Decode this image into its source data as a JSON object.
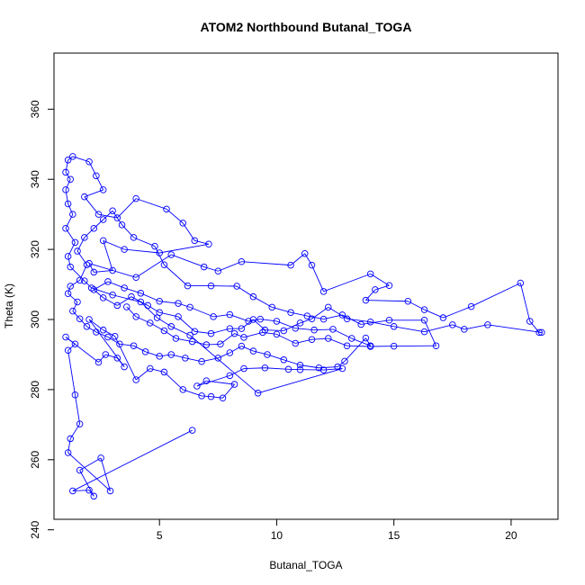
{
  "chart_data": {
    "type": "line",
    "title": "ATOM2 Northbound Butanal_TOGA",
    "xlabel": "Butanal_TOGA",
    "ylabel": "Theta (K)",
    "xlim": [
      0.5,
      22.0
    ],
    "ylim": [
      243,
      376
    ],
    "xticks": [
      5,
      10,
      15,
      20
    ],
    "yticks": [
      240,
      260,
      280,
      300,
      320,
      340,
      360
    ],
    "grid": false,
    "legend": "none",
    "marker": "open-circle",
    "line_style": "overplotted",
    "series": [
      {
        "color": "#0000ff",
        "points": [
          [
            6.4,
            268.4
          ],
          [
            1.3,
            251.1
          ],
          [
            2.0,
            251.3
          ],
          [
            2.2,
            249.6
          ],
          [
            1.6,
            257.0
          ],
          [
            2.5,
            260.5
          ],
          [
            2.9,
            251.1
          ],
          [
            1.1,
            262.0
          ],
          [
            1.2,
            266.0
          ],
          [
            1.6,
            270.2
          ],
          [
            1.4,
            278.5
          ],
          [
            1.1,
            291.2
          ],
          [
            1.4,
            293.0
          ],
          [
            1.0,
            295.0
          ],
          [
            2.4,
            287.8
          ],
          [
            2.7,
            290.0
          ],
          [
            3.2,
            289.0
          ],
          [
            3.5,
            286.5
          ],
          [
            2.0,
            300.0
          ],
          [
            2.6,
            297.0
          ],
          [
            3.1,
            295.2
          ],
          [
            4.0,
            282.8
          ],
          [
            4.6,
            286.0
          ],
          [
            5.2,
            285.0
          ],
          [
            6.0,
            280.0
          ],
          [
            6.8,
            278.2
          ],
          [
            7.2,
            278.0
          ],
          [
            7.7,
            277.6
          ],
          [
            8.2,
            281.5
          ],
          [
            7.0,
            282.5
          ],
          [
            6.6,
            281.0
          ],
          [
            8.0,
            284.0
          ],
          [
            8.6,
            286.0
          ],
          [
            9.5,
            286.2
          ],
          [
            10.5,
            285.8
          ],
          [
            11.0,
            285.7
          ],
          [
            12.0,
            285.6
          ],
          [
            12.8,
            286.0
          ],
          [
            9.2,
            279.0
          ],
          [
            6.3,
            295.5
          ],
          [
            5.5,
            298.0
          ],
          [
            4.9,
            300.5
          ],
          [
            4.2,
            305.0
          ],
          [
            3.0,
            307.0
          ],
          [
            2.1,
            309.0
          ],
          [
            1.8,
            311.0
          ],
          [
            1.2,
            315.0
          ],
          [
            1.1,
            318.0
          ],
          [
            1.4,
            322.0
          ],
          [
            1.0,
            326.0
          ],
          [
            1.3,
            330.0
          ],
          [
            1.1,
            333.0
          ],
          [
            1.0,
            337.0
          ],
          [
            1.2,
            340.0
          ],
          [
            1.0,
            342.0
          ],
          [
            1.1,
            345.5
          ],
          [
            1.3,
            346.5
          ],
          [
            2.0,
            345.0
          ],
          [
            2.3,
            341.0
          ],
          [
            2.6,
            337.0
          ],
          [
            1.8,
            335.0
          ],
          [
            2.4,
            330.0
          ],
          [
            3.2,
            329.0
          ],
          [
            4.0,
            334.5
          ],
          [
            5.3,
            331.5
          ],
          [
            6.0,
            327.5
          ],
          [
            6.5,
            322.5
          ],
          [
            7.1,
            321.5
          ],
          [
            5.0,
            319.0
          ],
          [
            3.5,
            320.0
          ],
          [
            2.6,
            322.5
          ],
          [
            3.0,
            314.0
          ],
          [
            2.2,
            313.5
          ],
          [
            2.0,
            316.0
          ],
          [
            4.0,
            312.0
          ],
          [
            5.5,
            318.5
          ],
          [
            6.9,
            315.0
          ],
          [
            7.5,
            313.8
          ],
          [
            8.5,
            316.5
          ],
          [
            10.6,
            315.5
          ],
          [
            11.2,
            318.8
          ],
          [
            11.5,
            315.5
          ],
          [
            12.0,
            308.0
          ],
          [
            14.0,
            313.0
          ],
          [
            14.8,
            309.7
          ],
          [
            14.2,
            308.5
          ],
          [
            13.8,
            305.5
          ],
          [
            15.6,
            305.2
          ],
          [
            16.3,
            302.8
          ],
          [
            17.1,
            300.5
          ],
          [
            18.3,
            303.7
          ],
          [
            20.4,
            310.4
          ],
          [
            20.8,
            299.5
          ],
          [
            21.2,
            296.3
          ],
          [
            21.3,
            296.3
          ],
          [
            19.0,
            298.5
          ],
          [
            18.0,
            297.2
          ],
          [
            17.5,
            298.5
          ],
          [
            16.3,
            296.5
          ],
          [
            15.0,
            298.0
          ],
          [
            14.0,
            299.3
          ],
          [
            13.0,
            300.2
          ],
          [
            12.2,
            303.5
          ],
          [
            11.5,
            300.2
          ],
          [
            11.0,
            299.0
          ],
          [
            10.3,
            296.8
          ],
          [
            9.5,
            297.0
          ],
          [
            9.0,
            300.0
          ],
          [
            8.5,
            297.4
          ],
          [
            8.0,
            297.4
          ],
          [
            7.2,
            296.0
          ],
          [
            6.5,
            296.6
          ],
          [
            5.8,
            300.8
          ],
          [
            5.0,
            302.0
          ],
          [
            4.5,
            304.0
          ],
          [
            3.8,
            306.5
          ],
          [
            3.2,
            304.0
          ],
          [
            2.6,
            306.2
          ],
          [
            2.2,
            308.5
          ],
          [
            2.8,
            310.8
          ],
          [
            3.5,
            309.0
          ],
          [
            4.2,
            307.5
          ],
          [
            5.0,
            305.2
          ],
          [
            5.8,
            304.6
          ],
          [
            6.3,
            303.5
          ],
          [
            7.3,
            300.8
          ],
          [
            8.0,
            301.4
          ],
          [
            8.8,
            299.5
          ],
          [
            9.3,
            300.1
          ],
          [
            10.0,
            299.5
          ],
          [
            10.8,
            297.5
          ],
          [
            11.6,
            297.0
          ],
          [
            12.4,
            297.2
          ],
          [
            13.2,
            294.6
          ],
          [
            14.0,
            292.5
          ],
          [
            13.8,
            294.7
          ],
          [
            12.9,
            288.1
          ],
          [
            12.6,
            286.5
          ],
          [
            11.8,
            286.2
          ],
          [
            11.0,
            287.0
          ],
          [
            10.3,
            288.5
          ],
          [
            9.6,
            290.0
          ],
          [
            9.0,
            291.0
          ],
          [
            8.5,
            292.4
          ],
          [
            8.0,
            290.5
          ],
          [
            7.5,
            289.0
          ],
          [
            6.8,
            288.0
          ],
          [
            6.1,
            289.0
          ],
          [
            5.5,
            290.0
          ],
          [
            5.0,
            289.5
          ],
          [
            4.4,
            290.8
          ],
          [
            3.9,
            292.5
          ],
          [
            3.3,
            293.0
          ],
          [
            2.8,
            295.0
          ],
          [
            2.3,
            296.4
          ],
          [
            1.9,
            298.0
          ],
          [
            1.6,
            300.2
          ],
          [
            1.3,
            302.4
          ],
          [
            1.5,
            305.0
          ],
          [
            1.1,
            307.4
          ],
          [
            1.2,
            309.5
          ],
          [
            1.6,
            311.2
          ],
          [
            1.9,
            315.6
          ],
          [
            1.5,
            319.5
          ],
          [
            1.8,
            323.4
          ],
          [
            2.2,
            326.0
          ],
          [
            2.6,
            328.5
          ],
          [
            3.0,
            331.0
          ],
          [
            3.4,
            327.0
          ],
          [
            3.9,
            323.4
          ],
          [
            4.8,
            320.9
          ],
          [
            5.2,
            315.6
          ],
          [
            6.2,
            309.6
          ],
          [
            7.2,
            309.6
          ],
          [
            8.3,
            309.5
          ],
          [
            9.0,
            306.5
          ],
          [
            9.8,
            303.5
          ],
          [
            10.6,
            302.0
          ],
          [
            11.3,
            301.0
          ],
          [
            12.0,
            300.1
          ],
          [
            12.8,
            301.3
          ],
          [
            13.6,
            298.6
          ],
          [
            14.8,
            299.8
          ],
          [
            16.3,
            299.8
          ],
          [
            16.8,
            292.5
          ],
          [
            15.0,
            292.4
          ],
          [
            14.0,
            292.3
          ],
          [
            13.0,
            292.5
          ],
          [
            12.2,
            294.6
          ],
          [
            11.5,
            294.3
          ],
          [
            10.8,
            293.2
          ],
          [
            10.0,
            295.8
          ],
          [
            9.4,
            296.3
          ],
          [
            8.6,
            294.9
          ],
          [
            8.2,
            296.0
          ],
          [
            7.6,
            293.0
          ],
          [
            7.0,
            292.8
          ],
          [
            6.4,
            293.7
          ],
          [
            5.7,
            294.6
          ],
          [
            5.2,
            296.8
          ],
          [
            4.6,
            299.0
          ],
          [
            4.0,
            300.8
          ],
          [
            3.6,
            303.6
          ]
        ]
      }
    ]
  }
}
